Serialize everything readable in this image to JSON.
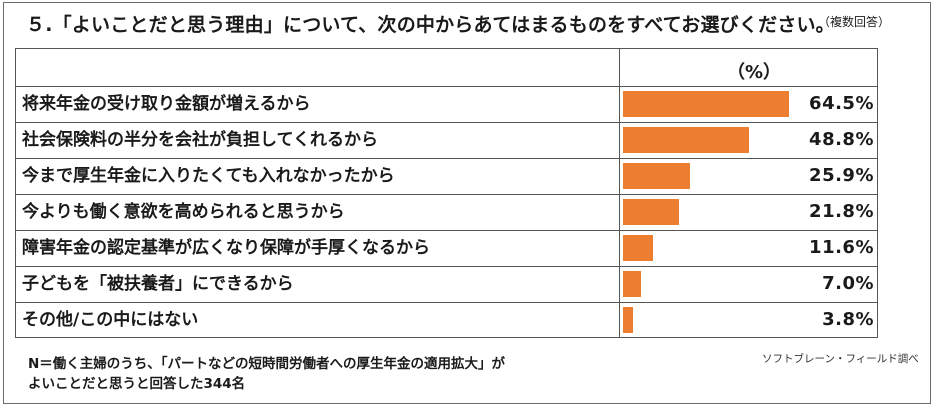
{
  "title": "５.「よいことだと思う理由」について、次の中からあてはまるものをすべてお選びください。",
  "title_note": "（複数回答）",
  "footnote": {
    "line1": "N＝働く主婦のうち、「パートなどの短時間労働者への厚生年金の適用拡大」が",
    "line2": "よいことだと思うと回答した344名"
  },
  "source": "ソフトブレーン・フィールド調べ",
  "colors": {
    "bar": "#ed7d31",
    "border": "#555555"
  },
  "chart_data": {
    "type": "bar",
    "orientation": "horizontal",
    "unit_label": "（%）",
    "categories": [
      "将来年金の受け取り金額が増えるから",
      "社会保険料の半分を会社が負担してくれるから",
      "今まで厚生年金に入りたくても入れなかったから",
      "今よりも働く意欲を高められると思うから",
      "障害年金の認定基準が広くなり保障が手厚くなるから",
      "子どもを「被扶養者」にできるから",
      "その他/この中にはない"
    ],
    "values": [
      64.5,
      48.8,
      25.9,
      21.8,
      11.6,
      7.0,
      3.8
    ],
    "value_labels": [
      "64.5%",
      "48.8%",
      "25.9%",
      "21.8%",
      "11.6%",
      "7.0%",
      "3.8%"
    ],
    "xlim": [
      0,
      64.5
    ]
  }
}
